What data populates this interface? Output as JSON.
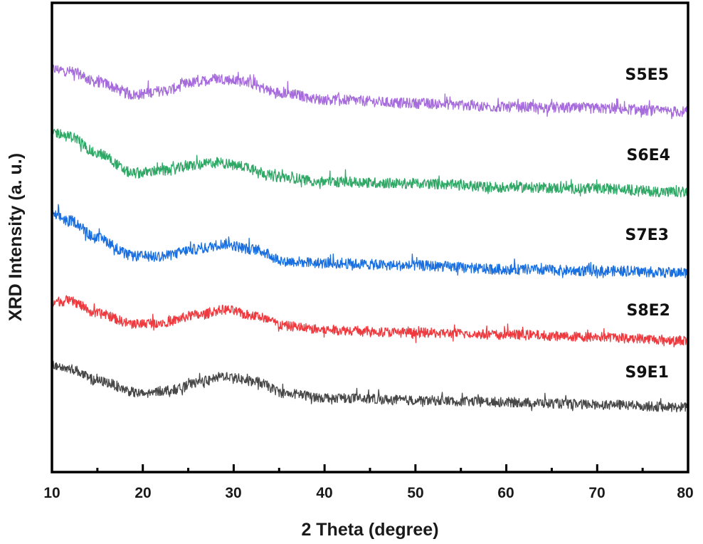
{
  "chart_data": {
    "type": "line",
    "title": "",
    "xlabel": "2 Theta (degree)",
    "ylabel": "XRD Intensity (a. u.)",
    "xlim": [
      10,
      80
    ],
    "ylim": [
      0,
      100
    ],
    "x_ticks": [
      10,
      20,
      30,
      40,
      50,
      60,
      70,
      80
    ],
    "x_tick_labels": [
      "10",
      "20",
      "30",
      "40",
      "50",
      "60",
      "70",
      "80"
    ],
    "x_minor_ticks": [
      15,
      25,
      35,
      45,
      55,
      65,
      75
    ],
    "y_ticks": [],
    "grid": false,
    "legend": "inline labels at right end of each curve",
    "stacked_offset": true,
    "series": [
      {
        "name": "S5E5",
        "color": "#a66cdc",
        "x": [
          10,
          12,
          15,
          19,
          22,
          26,
          28,
          31,
          35,
          40,
          50,
          60,
          70,
          80
        ],
        "values": [
          85.9,
          85.4,
          83.1,
          80.4,
          81.2,
          83.1,
          83.9,
          83.3,
          80.9,
          79.4,
          78.6,
          77.8,
          77.5,
          76.8
        ],
        "noise": 1.6
      },
      {
        "name": "S6E4",
        "color": "#2fa866",
        "x": [
          10,
          12,
          15,
          19,
          22,
          26,
          28,
          31,
          35,
          40,
          50,
          60,
          70,
          80
        ],
        "values": [
          72.5,
          71.5,
          67.9,
          63.7,
          64.2,
          65.4,
          66.0,
          65.2,
          62.9,
          61.9,
          61.5,
          60.7,
          60.4,
          59.6
        ],
        "noise": 1.6
      },
      {
        "name": "S7E3",
        "color": "#1a6fe0",
        "x": [
          10,
          12,
          15,
          19,
          22,
          26,
          29,
          32,
          36,
          40,
          50,
          60,
          70,
          80
        ],
        "values": [
          54.8,
          53.6,
          49.8,
          46.0,
          46.0,
          47.5,
          48.6,
          47.5,
          44.9,
          44.5,
          44.0,
          43.2,
          42.9,
          42.5
        ],
        "noise": 1.6
      },
      {
        "name": "S8E2",
        "color": "#ee3a3f",
        "x": [
          10,
          12,
          15,
          19,
          22,
          26,
          29,
          32,
          36,
          40,
          50,
          60,
          70,
          80
        ],
        "values": [
          36.4,
          36.4,
          33.8,
          31.6,
          31.9,
          33.4,
          34.6,
          33.4,
          31.1,
          30.3,
          29.7,
          29.3,
          28.8,
          28.1
        ],
        "noise": 1.5
      },
      {
        "name": "S9E1",
        "color": "#474747",
        "x": [
          10,
          12,
          15,
          20,
          23,
          27,
          29,
          32,
          36,
          40,
          50,
          60,
          70,
          80
        ],
        "values": [
          22.8,
          22.0,
          19.4,
          16.7,
          17.5,
          19.4,
          20.5,
          19.4,
          16.7,
          15.9,
          15.3,
          14.9,
          14.4,
          13.8
        ],
        "noise": 1.5
      }
    ],
    "annotations": [
      {
        "text": "S5E5",
        "x": 76,
        "y": 90.5
      },
      {
        "text": "S6E4",
        "x": 76,
        "y": 76.5
      },
      {
        "text": "S7E3",
        "x": 76,
        "y": 61.3
      },
      {
        "text": "S8E2",
        "x": 76,
        "y": 46.8
      },
      {
        "text": "S9E1",
        "x": 76,
        "y": 32.0
      }
    ]
  },
  "labels": {
    "xlabel": "2 Theta (degree)",
    "ylabel": "XRD Intensity (a. u.)",
    "series": [
      "S5E5",
      "S6E4",
      "S7E3",
      "S8E2",
      "S9E1"
    ],
    "x_ticks": [
      "10",
      "20",
      "30",
      "40",
      "50",
      "60",
      "70",
      "80"
    ]
  }
}
